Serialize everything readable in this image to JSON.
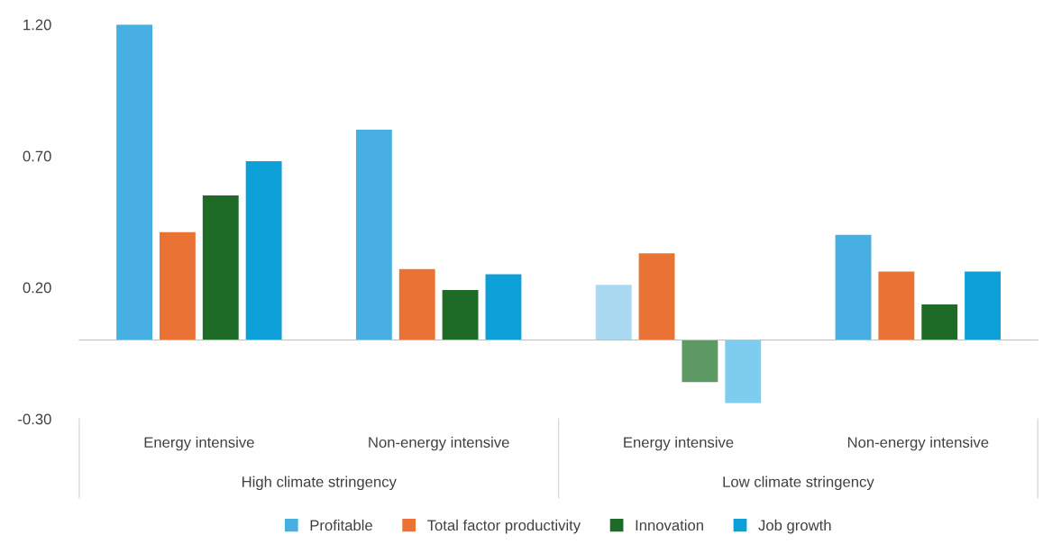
{
  "chart_data": {
    "type": "bar",
    "categories": [
      "Energy intensive",
      "Non-energy intensive",
      "Energy intensive",
      "Non-energy intensive"
    ],
    "annotations": [
      "High climate stringency",
      "Low climate stringency"
    ],
    "series": [
      {
        "name": "Profitable",
        "color": "#47afe2",
        "colors": [
          "#47afe2",
          "#47afe2",
          "#a9d8f1",
          "#47afe2"
        ],
        "values": [
          1.2,
          0.8,
          0.21,
          0.4
        ]
      },
      {
        "name": "Total factor productivity",
        "color": "#eb7235",
        "values": [
          0.41,
          0.27,
          0.33,
          0.26
        ]
      },
      {
        "name": "Innovation",
        "color": "#1e6b27",
        "colors": [
          "#1e6b27",
          "#1e6b27",
          "#5e9a66",
          "#1e6b27"
        ],
        "values": [
          0.55,
          0.19,
          -0.16,
          0.135
        ]
      },
      {
        "name": "Job growth",
        "color": "#0d9fd8",
        "colors": [
          "#0d9fd8",
          "#0d9fd8",
          "#7fcdee",
          "#0d9fd8"
        ],
        "values": [
          0.68,
          0.25,
          -0.24,
          0.26
        ]
      }
    ],
    "ylim": [
      -0.3,
      1.2
    ],
    "yticks": [
      {
        "value": -0.3,
        "label": "-0.30"
      },
      {
        "value": 0.2,
        "label": "0.20"
      },
      {
        "value": 0.7,
        "label": "0.70"
      },
      {
        "value": 1.2,
        "label": "1.20"
      }
    ],
    "grid": false,
    "legend": "bottom"
  }
}
